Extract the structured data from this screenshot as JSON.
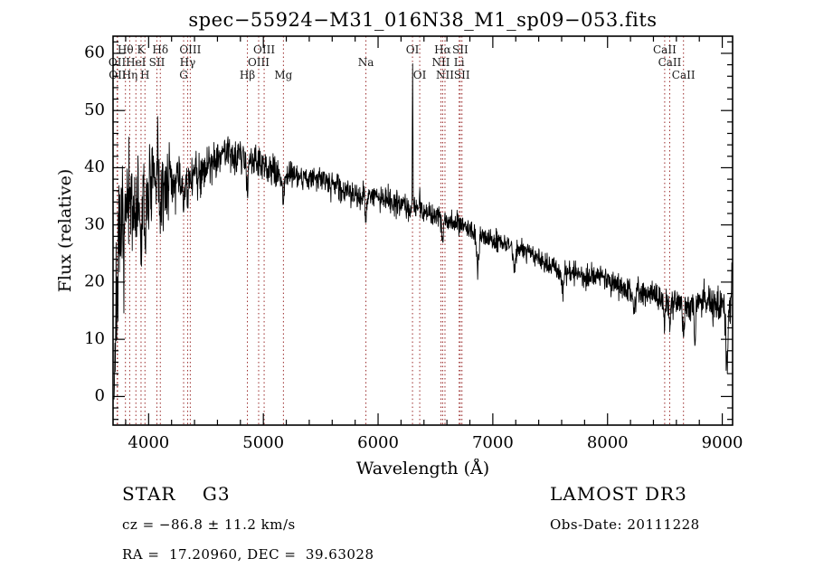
{
  "chart_data": {
    "type": "line",
    "title": "spec−55924−M31_016N38_M1_sp09−053.fits",
    "xlabel": "Wavelength (Å)",
    "ylabel": "Flux (relative)",
    "xlim": [
      3690,
      9090
    ],
    "ylim": [
      -5,
      63
    ],
    "x_ticks": [
      4000,
      5000,
      6000,
      7000,
      8000,
      9000
    ],
    "x_minor_step": 200,
    "y_ticks": [
      0,
      10,
      20,
      30,
      40,
      50,
      60
    ],
    "y_minor_step": 2,
    "grid": false,
    "legend": "none",
    "series_color": "#000000",
    "marker_line_color": "#9b2c2c",
    "marker_label_color": "#1a1a1a",
    "noise_seed": 7,
    "continuum": [
      [
        3690,
        0
      ],
      [
        3700,
        4
      ],
      [
        3712,
        12
      ],
      [
        3725,
        19
      ],
      [
        3745,
        25
      ],
      [
        3775,
        29
      ],
      [
        3815,
        32
      ],
      [
        3860,
        33
      ],
      [
        3905,
        33
      ],
      [
        3950,
        34
      ],
      [
        4000,
        36
      ],
      [
        4060,
        37
      ],
      [
        4120,
        36
      ],
      [
        4200,
        37
      ],
      [
        4300,
        38
      ],
      [
        4400,
        39
      ],
      [
        4500,
        40
      ],
      [
        4600,
        42
      ],
      [
        4700,
        43
      ],
      [
        4800,
        42
      ],
      [
        4900,
        42
      ],
      [
        5000,
        40
      ],
      [
        5100,
        39
      ],
      [
        5250,
        39
      ],
      [
        5400,
        38
      ],
      [
        5550,
        38
      ],
      [
        5700,
        36
      ],
      [
        5850,
        35
      ],
      [
        6000,
        35
      ],
      [
        6150,
        34
      ],
      [
        6300,
        33
      ],
      [
        6450,
        32
      ],
      [
        6600,
        31
      ],
      [
        6750,
        30
      ],
      [
        6900,
        28
      ],
      [
        7050,
        27
      ],
      [
        7200,
        26
      ],
      [
        7350,
        25
      ],
      [
        7500,
        23
      ],
      [
        7650,
        22
      ],
      [
        7800,
        21
      ],
      [
        7950,
        21
      ],
      [
        8100,
        19
      ],
      [
        8250,
        18
      ],
      [
        8400,
        18
      ],
      [
        8550,
        17
      ],
      [
        8700,
        16
      ],
      [
        8800,
        17
      ],
      [
        8900,
        16
      ],
      [
        9000,
        16
      ],
      [
        9045,
        14
      ],
      [
        9090,
        16
      ]
    ],
    "noise_profile": [
      [
        3690,
        9
      ],
      [
        3760,
        8
      ],
      [
        3850,
        7
      ],
      [
        3950,
        6
      ],
      [
        4060,
        5
      ],
      [
        4200,
        3.6
      ],
      [
        4400,
        2.9
      ],
      [
        4700,
        2.5
      ],
      [
        5000,
        2.1
      ],
      [
        5400,
        1.7
      ],
      [
        6000,
        1.5
      ],
      [
        6600,
        1.4
      ],
      [
        7200,
        1.35
      ],
      [
        7800,
        1.5
      ],
      [
        8400,
        1.7
      ],
      [
        8800,
        2.1
      ],
      [
        9090,
        3.2
      ]
    ],
    "absorption_features": [
      {
        "center": 3933,
        "depth": 9,
        "width": 6
      },
      {
        "center": 3968,
        "depth": 8,
        "width": 6
      },
      {
        "center": 4101,
        "depth": 7,
        "width": 5
      },
      {
        "center": 4305,
        "depth": 5,
        "width": 8
      },
      {
        "center": 4340,
        "depth": 6,
        "width": 5
      },
      {
        "center": 4861,
        "depth": 7,
        "width": 6
      },
      {
        "center": 5175,
        "depth": 4,
        "width": 9
      },
      {
        "center": 5893,
        "depth": 5,
        "width": 6
      },
      {
        "center": 6563,
        "depth": 5,
        "width": 6
      },
      {
        "center": 6867,
        "depth": 6,
        "width": 10
      },
      {
        "center": 7190,
        "depth": 4,
        "width": 10
      },
      {
        "center": 7605,
        "depth": 4,
        "width": 12
      },
      {
        "center": 8230,
        "depth": 3,
        "width": 10
      },
      {
        "center": 8498,
        "depth": 4,
        "width": 7
      },
      {
        "center": 8542,
        "depth": 5,
        "width": 8
      },
      {
        "center": 8662,
        "depth": 5,
        "width": 8
      },
      {
        "center": 8760,
        "depth": 9,
        "width": 5
      },
      {
        "center": 9040,
        "depth": 8,
        "width": 8
      }
    ],
    "emission_spikes": [
      {
        "center": 4078,
        "height": 11,
        "width": 4
      },
      {
        "center": 4180,
        "height": 8,
        "width": 3
      },
      {
        "center": 6301,
        "height": 24,
        "width": 2.5
      },
      {
        "center": 6363,
        "height": 6,
        "width": 2.5
      },
      {
        "center": 9082,
        "height": 5,
        "width": 4
      }
    ],
    "spectral_lines": [
      {
        "label": "OII",
        "wavelength": 3726,
        "row": 2
      },
      {
        "label": "OII",
        "wavelength": 3729,
        "row": 3
      },
      {
        "label": "Hθ",
        "wavelength": 3798,
        "row": 1
      },
      {
        "label": "Hη",
        "wavelength": 3835,
        "row": 3
      },
      {
        "label": "HeI",
        "wavelength": 3889,
        "row": 2
      },
      {
        "label": "K",
        "wavelength": 3934,
        "row": 1
      },
      {
        "label": "H",
        "wavelength": 3968,
        "row": 3
      },
      {
        "label": "SII",
        "wavelength": 4072,
        "row": 2
      },
      {
        "label": "Hδ",
        "wavelength": 4102,
        "row": 1
      },
      {
        "label": "G",
        "wavelength": 4305,
        "row": 3
      },
      {
        "label": "Hγ",
        "wavelength": 4340,
        "row": 2
      },
      {
        "label": "OIII",
        "wavelength": 4363,
        "row": 1
      },
      {
        "label": "Hβ",
        "wavelength": 4861,
        "row": 3
      },
      {
        "label": "OIII",
        "wavelength": 4959,
        "row": 2
      },
      {
        "label": "OIII",
        "wavelength": 5007,
        "row": 1
      },
      {
        "label": "Mg",
        "wavelength": 5175,
        "row": 3
      },
      {
        "label": "Na",
        "wavelength": 5894,
        "row": 2
      },
      {
        "label": "OI",
        "wavelength": 6300,
        "row": 1
      },
      {
        "label": "OI",
        "wavelength": 6363,
        "row": 3
      },
      {
        "label": "NII",
        "wavelength": 6548,
        "row": 2
      },
      {
        "label": "Hα",
        "wavelength": 6563,
        "row": 1
      },
      {
        "label": "NII",
        "wavelength": 6583,
        "row": 3
      },
      {
        "label": "Li",
        "wavelength": 6707,
        "row": 2
      },
      {
        "label": "SII",
        "wavelength": 6716,
        "row": 1
      },
      {
        "label": "SII",
        "wavelength": 6731,
        "row": 3
      },
      {
        "label": "CaII",
        "wavelength": 8498,
        "row": 1
      },
      {
        "label": "CaII",
        "wavelength": 8542,
        "row": 2
      },
      {
        "label": "CaII",
        "wavelength": 8662,
        "row": 3
      }
    ]
  },
  "annotations": {
    "class_label": "STAR    G3",
    "cz": "cz = −86.8 ± 11.2 km/s",
    "ra_dec": "RA =  17.20960, DEC =  39.63028",
    "survey": "LAMOST DR3",
    "obs_date": "Obs-Date: 20111228"
  }
}
